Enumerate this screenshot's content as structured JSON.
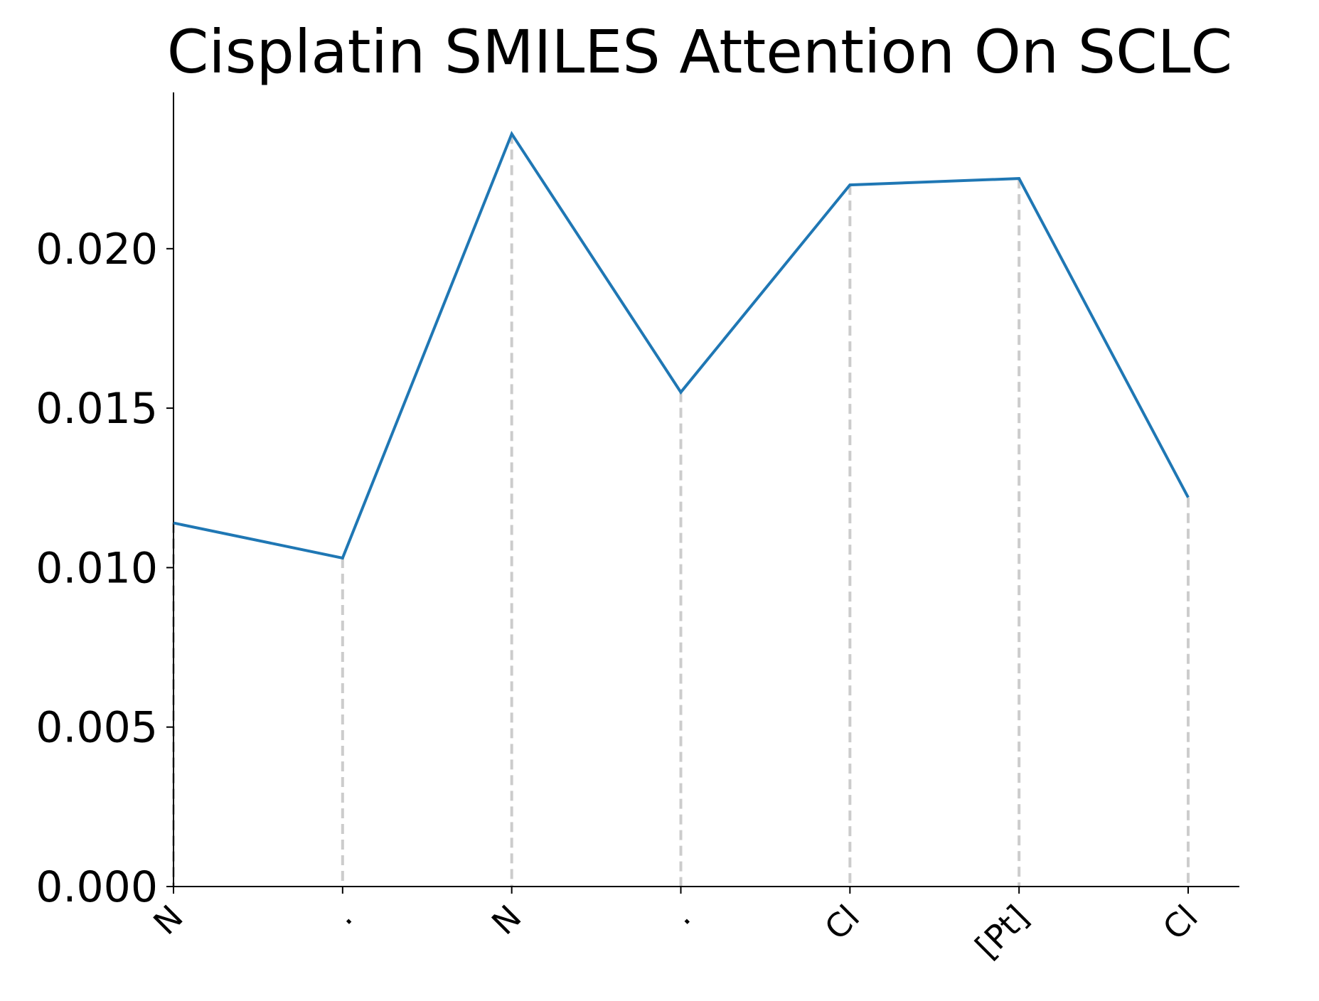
{
  "chart_data": {
    "type": "line",
    "title": "Cisplatin SMILES Attention On SCLC",
    "xlabel": "",
    "ylabel": "",
    "categories": [
      "N",
      ".",
      "N",
      ".",
      "Cl",
      "[Pt]",
      "Cl"
    ],
    "series": [
      {
        "name": "attention",
        "color": "#1f77b4",
        "values": [
          0.0114,
          0.0103,
          0.0236,
          0.0155,
          0.022,
          0.0222,
          0.0122
        ]
      }
    ],
    "yticks": [
      0.0,
      0.005,
      0.01,
      0.015,
      0.02
    ],
    "ytick_labels": [
      "0.000",
      "0.005",
      "0.010",
      "0.015",
      "0.020"
    ],
    "ylim": [
      0.0,
      0.0249
    ],
    "grid": false,
    "drop_lines": true,
    "drop_line_color": "#cccccc"
  }
}
